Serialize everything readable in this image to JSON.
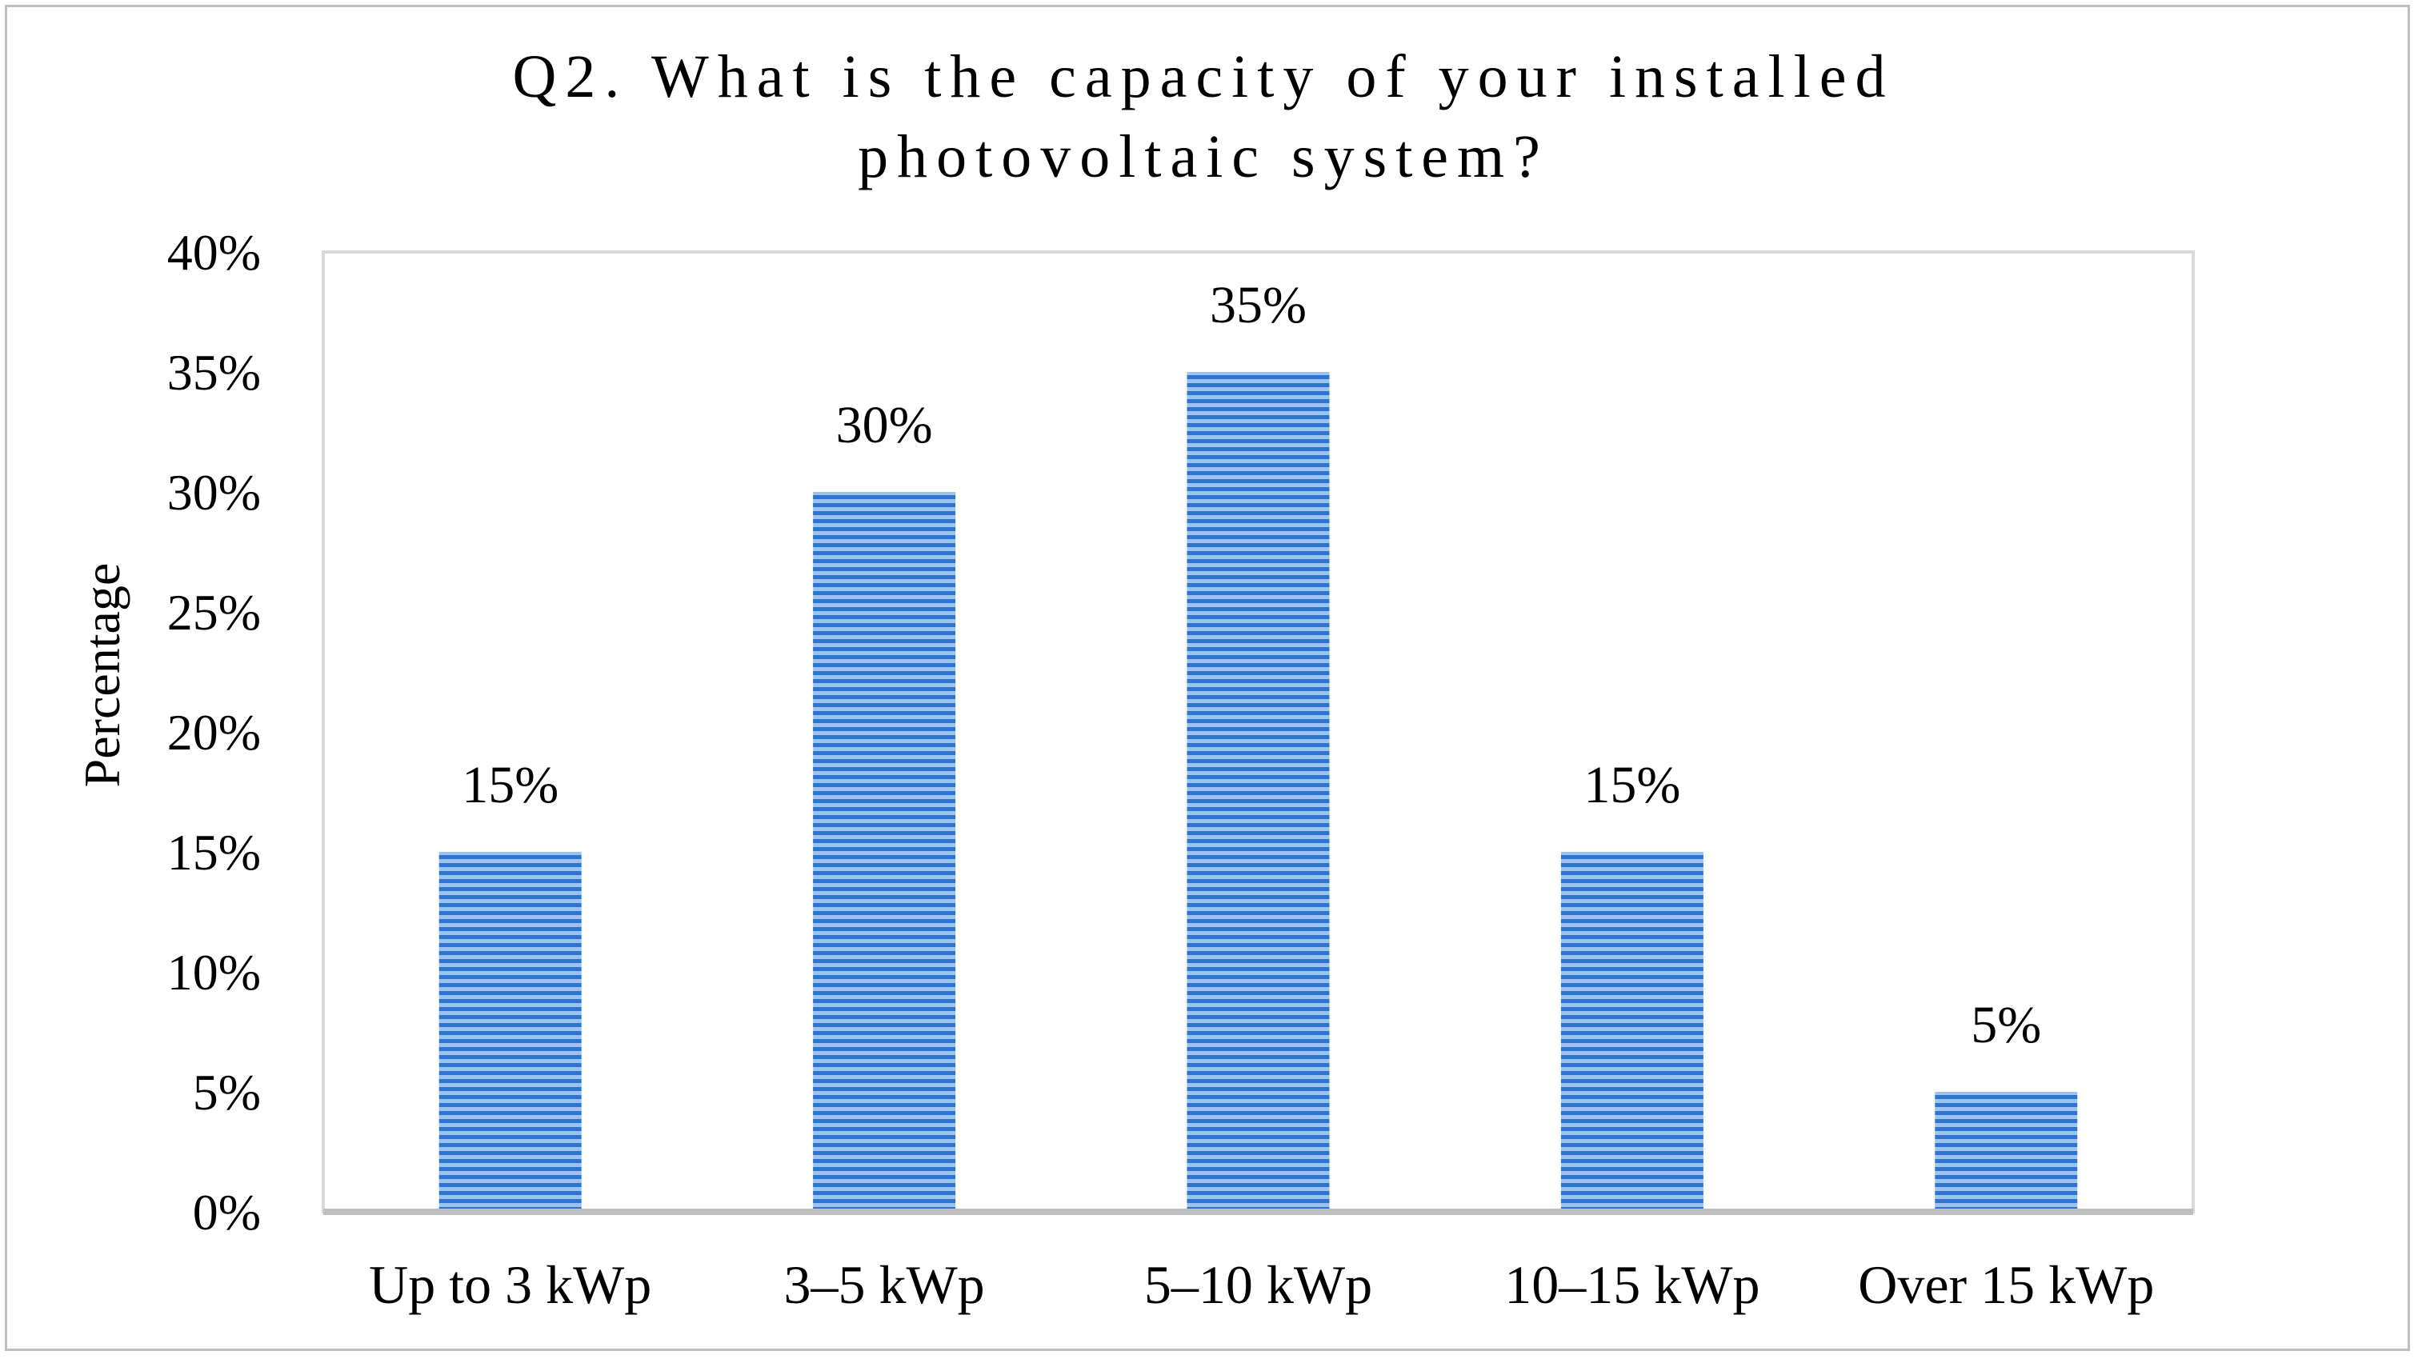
{
  "chart_data": {
    "type": "bar",
    "title_lines": [
      "Q2. What is the capacity of your installed",
      "photovoltaic system?"
    ],
    "xlabel": "",
    "ylabel": "Percentage",
    "categories": [
      "Up to 3 kWp",
      "3–5 kWp",
      "5–10 kWp",
      "10–15 kWp",
      "Over 15 kWp"
    ],
    "values": [
      15,
      30,
      35,
      15,
      5
    ],
    "data_labels": [
      "15%",
      "30%",
      "35%",
      "15%",
      "5%"
    ],
    "ylim": [
      0,
      40
    ],
    "yticks": [
      0,
      5,
      10,
      15,
      20,
      25,
      30,
      35,
      40
    ],
    "ytick_labels": [
      "0%",
      "5%",
      "10%",
      "15%",
      "20%",
      "25%",
      "30%",
      "35%",
      "40%"
    ],
    "grid": false,
    "legend": "none",
    "colors": {
      "bar_stripe": "#2e74d2",
      "bar_stripe_light": "#9cc3f0",
      "plot_border": "#d9d9d9",
      "baseline": "#bfbfbf",
      "frame_border": "#bfbfbf"
    }
  }
}
